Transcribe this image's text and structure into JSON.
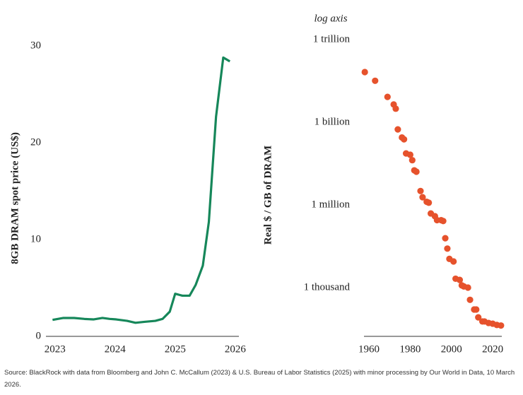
{
  "chart_data": [
    {
      "type": "line",
      "y_label": "8GB DRAM spot price (US$)",
      "x": [
        2022.96,
        2023.14,
        2023.32,
        2023.49,
        2023.64,
        2023.79,
        2023.91,
        2024.02,
        2024.2,
        2024.34,
        2024.49,
        2024.67,
        2024.79,
        2024.91,
        2025.0,
        2025.12,
        2025.24,
        2025.34,
        2025.46,
        2025.56,
        2025.68,
        2025.8,
        2025.91
      ],
      "series": [
        {
          "color": "#16875a",
          "values": [
            1.7,
            1.9,
            1.9,
            1.8,
            1.75,
            1.9,
            1.8,
            1.75,
            1.6,
            1.4,
            1.5,
            1.6,
            1.8,
            2.55,
            4.4,
            4.2,
            4.2,
            5.3,
            7.3,
            11.8,
            22.7,
            28.8,
            28.4
          ]
        }
      ],
      "xlim": [
        2022.85,
        2026.06
      ],
      "xticks": [
        2023,
        2024,
        2025,
        2026
      ],
      "ylim": [
        0,
        30
      ],
      "yticks": [
        0,
        10,
        20,
        30
      ]
    },
    {
      "type": "scatter",
      "y_label": "Real $ / GB of DRAM",
      "annotation": "log axis",
      "log_y": true,
      "x": [
        1958,
        1963,
        1969,
        1972,
        1973,
        1974,
        1976,
        1977,
        1978,
        1980,
        1981,
        1982,
        1983,
        1985,
        1986,
        1988,
        1989,
        1990,
        1992,
        1993,
        1995,
        1996,
        1997,
        1998,
        1999,
        2001,
        2002,
        2004,
        2005,
        2006,
        2008,
        2009,
        2011,
        2012,
        2013,
        2015,
        2016,
        2018,
        2020,
        2022,
        2024
      ],
      "series": [
        {
          "color": "#e6522c",
          "values": [
            66000000000,
            32000000000,
            8300000000,
            4400000000,
            3100000000,
            550000000,
            280000000,
            240000000,
            74000000,
            66000000,
            42000000,
            18000000,
            16000000,
            3200000,
            1900000,
            1300000,
            1200000,
            490000,
            390000,
            280000,
            280000,
            260000,
            62000,
            26000,
            11000,
            8900,
            2100,
            1900,
            1200,
            1100,
            1000,
            360,
            160,
            160,
            83,
            59,
            59,
            52,
            49,
            44,
            42
          ]
        }
      ],
      "xlim": [
        1957.6,
        2024.4
      ],
      "xticks": [
        1960,
        1980,
        2000,
        2020
      ],
      "ylim": [
        17,
        1000000000000
      ],
      "yticks": [
        {
          "value": 1000,
          "label": "1 thousand"
        },
        {
          "value": 1000000,
          "label": "1 million"
        },
        {
          "value": 1000000000,
          "label": "1 billion"
        },
        {
          "value": 1000000000000,
          "label": "1 trillion"
        }
      ]
    }
  ],
  "source": "Source: BlackRock with data from Bloomberg and John C. McCallum (2023) & U.S. Bureau of Labor Statistics (2025) with minor processing by Our World in Data, 10 March 2026."
}
